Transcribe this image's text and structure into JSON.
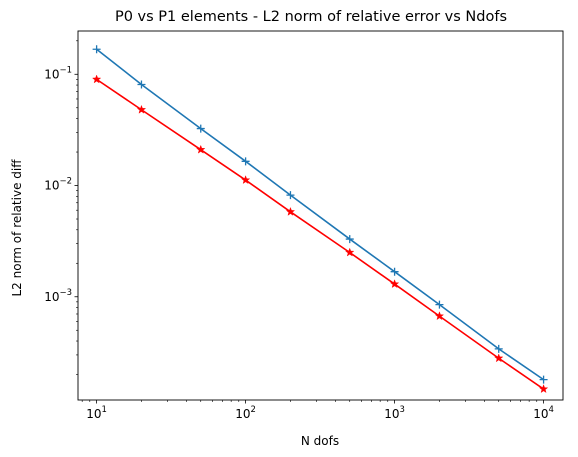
{
  "chart_data": {
    "type": "line",
    "title": "P0 vs P1 elements - L2 norm of relative error vs Ndofs",
    "xlabel": "N dofs",
    "ylabel": "L2 norm of relative diff",
    "xscale": "log",
    "yscale": "log",
    "xlim": [
      7.5,
      13500
    ],
    "ylim": [
      0.000118,
      0.245
    ],
    "grid": false,
    "x": [
      10,
      20,
      50,
      100,
      200,
      500,
      1000,
      2000,
      5000,
      10000
    ],
    "series": [
      {
        "color": "#1f77b4",
        "marker": "plus",
        "values": [
          0.168,
          0.081,
          0.0325,
          0.0165,
          0.0082,
          0.0033,
          0.00168,
          0.00085,
          0.00034,
          0.00018
        ]
      },
      {
        "color": "#ff0000",
        "marker": "star",
        "values": [
          0.09,
          0.048,
          0.021,
          0.0112,
          0.0058,
          0.0025,
          0.0013,
          0.00067,
          0.00028,
          0.000148
        ]
      }
    ],
    "xticks": [
      {
        "value": 10,
        "base": "10",
        "exp": "1"
      },
      {
        "value": 100,
        "base": "10",
        "exp": "2"
      },
      {
        "value": 1000,
        "base": "10",
        "exp": "3"
      },
      {
        "value": 10000,
        "base": "10",
        "exp": "4"
      }
    ],
    "yticks": [
      {
        "value": 0.001,
        "base": "10",
        "exp": "−3"
      },
      {
        "value": 0.01,
        "base": "10",
        "exp": "−2"
      },
      {
        "value": 0.1,
        "base": "10",
        "exp": "−1"
      }
    ]
  }
}
